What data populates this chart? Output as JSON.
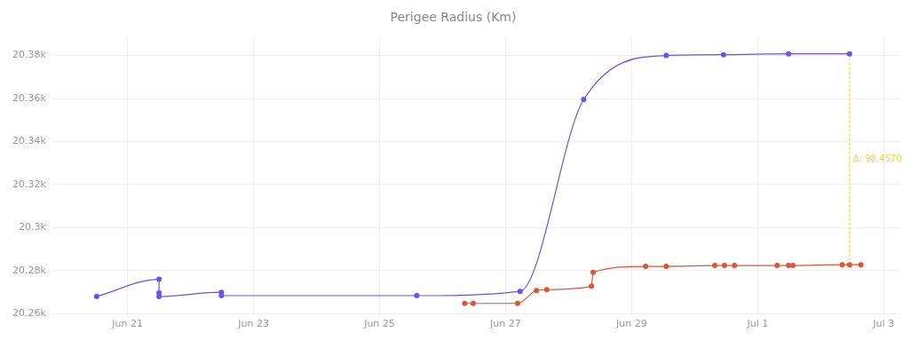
{
  "chart_data": {
    "type": "line",
    "title": "Perigee Radius (Km)",
    "xlim": [
      "--06-19T19:00",
      "--07-03T06:00"
    ],
    "xticks": [
      {
        "value": "--06-21",
        "label": "Jun 21"
      },
      {
        "value": "--06-23",
        "label": "Jun 23"
      },
      {
        "value": "--06-25",
        "label": "Jun 25"
      },
      {
        "value": "--06-27",
        "label": "Jun 27"
      },
      {
        "value": "--06-29",
        "label": "Jun 29"
      },
      {
        "value": "--07-01",
        "label": "Jul 1"
      },
      {
        "value": "--07-03",
        "label": "Jul 3"
      }
    ],
    "ylim": [
      20259,
      20389
    ],
    "yticks": [
      {
        "value": 20260,
        "label": "20.26k"
      },
      {
        "value": 20280,
        "label": "20.28k"
      },
      {
        "value": 20300,
        "label": "20.3k"
      },
      {
        "value": 20320,
        "label": "20.32k"
      },
      {
        "value": 20340,
        "label": "20.34k"
      },
      {
        "value": 20360,
        "label": "20.36k"
      },
      {
        "value": 20380,
        "label": "20.38k"
      }
    ],
    "grid": true,
    "legend": false,
    "marker": "circle",
    "line_style": "solid",
    "series": [
      {
        "color": "#6e4ff0",
        "x": [
          "--06-20T12:15",
          "--06-21T12:00",
          "--06-21T12:00",
          "--06-21T12:00",
          "--06-22T11:45",
          "--06-22T11:45",
          "--06-25T14:10",
          "--06-27T05:30",
          "--06-28T05:45",
          "--06-29T13:10",
          "--06-30T11:00",
          "--07-01T11:45",
          "--07-02T11:00"
        ],
        "values": [
          20268,
          20276,
          20269.6,
          20268,
          20270,
          20268.4,
          20268.4,
          20270.4,
          20359.6,
          20380,
          20380.4,
          20380.8,
          20380.8
        ]
      },
      {
        "color": "#dd5533",
        "x": [
          "--06-26T08:25",
          "--06-26T11:40",
          "--06-27T04:35",
          "--06-27T11:45",
          "--06-27T15:40",
          "--06-28T08:40",
          "--06-28T09:20",
          "--06-29T05:20",
          "--06-29T13:10",
          "--06-30T07:40",
          "--06-30T11:20",
          "--06-30T15:10",
          "--07-01T07:25",
          "--07-01T11:45",
          "--07-01T13:25",
          "--07-02T08:10",
          "--07-02T11:00",
          "--07-02T15:20"
        ],
        "values": [
          20264.8,
          20264.8,
          20264.8,
          20270.8,
          20271.2,
          20272.8,
          20279.2,
          20282,
          20282,
          20282.4,
          20282.4,
          20282.4,
          20282.4,
          20282.4,
          20282.4,
          20282.8,
          20282.8,
          20282.8
        ]
      },
      {
        "type": "line",
        "color": "#f2d33a",
        "marker": "none",
        "line_style": "dotted",
        "x": [
          "--07-02T11:00",
          "--07-02T11:00"
        ],
        "values": [
          20282.8,
          20380.8
        ]
      }
    ],
    "annotations": [
      {
        "text": "Δ: 98.4570",
        "x": "--07-02T11:00",
        "y": 20331.8
      }
    ]
  }
}
